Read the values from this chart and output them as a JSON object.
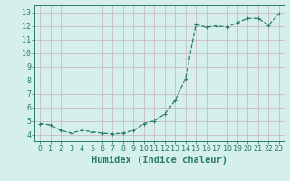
{
  "x": [
    0,
    1,
    2,
    3,
    4,
    5,
    6,
    7,
    8,
    9,
    10,
    11,
    12,
    13,
    14,
    15,
    16,
    17,
    18,
    19,
    20,
    21,
    22,
    23
  ],
  "y": [
    4.8,
    4.7,
    4.3,
    4.1,
    4.3,
    4.2,
    4.1,
    4.05,
    4.1,
    4.3,
    4.8,
    5.0,
    5.5,
    6.5,
    8.1,
    12.1,
    11.9,
    12.0,
    11.9,
    12.25,
    12.55,
    12.55,
    12.05,
    12.9
  ],
  "line_color": "#2a7a6a",
  "marker": "+",
  "marker_size": 3,
  "marker_lw": 0.8,
  "bg_color": "#d5f0ec",
  "grid_color": "#c8b0b8",
  "xlabel": "Humidex (Indice chaleur)",
  "tick_fontsize": 6,
  "xlabel_fontsize": 7.5,
  "ylim": [
    3.5,
    13.5
  ],
  "xlim": [
    -0.5,
    23.5
  ],
  "yticks": [
    4,
    5,
    6,
    7,
    8,
    9,
    10,
    11,
    12,
    13
  ],
  "xticks": [
    0,
    1,
    2,
    3,
    4,
    5,
    6,
    7,
    8,
    9,
    10,
    11,
    12,
    13,
    14,
    15,
    16,
    17,
    18,
    19,
    20,
    21,
    22,
    23
  ]
}
